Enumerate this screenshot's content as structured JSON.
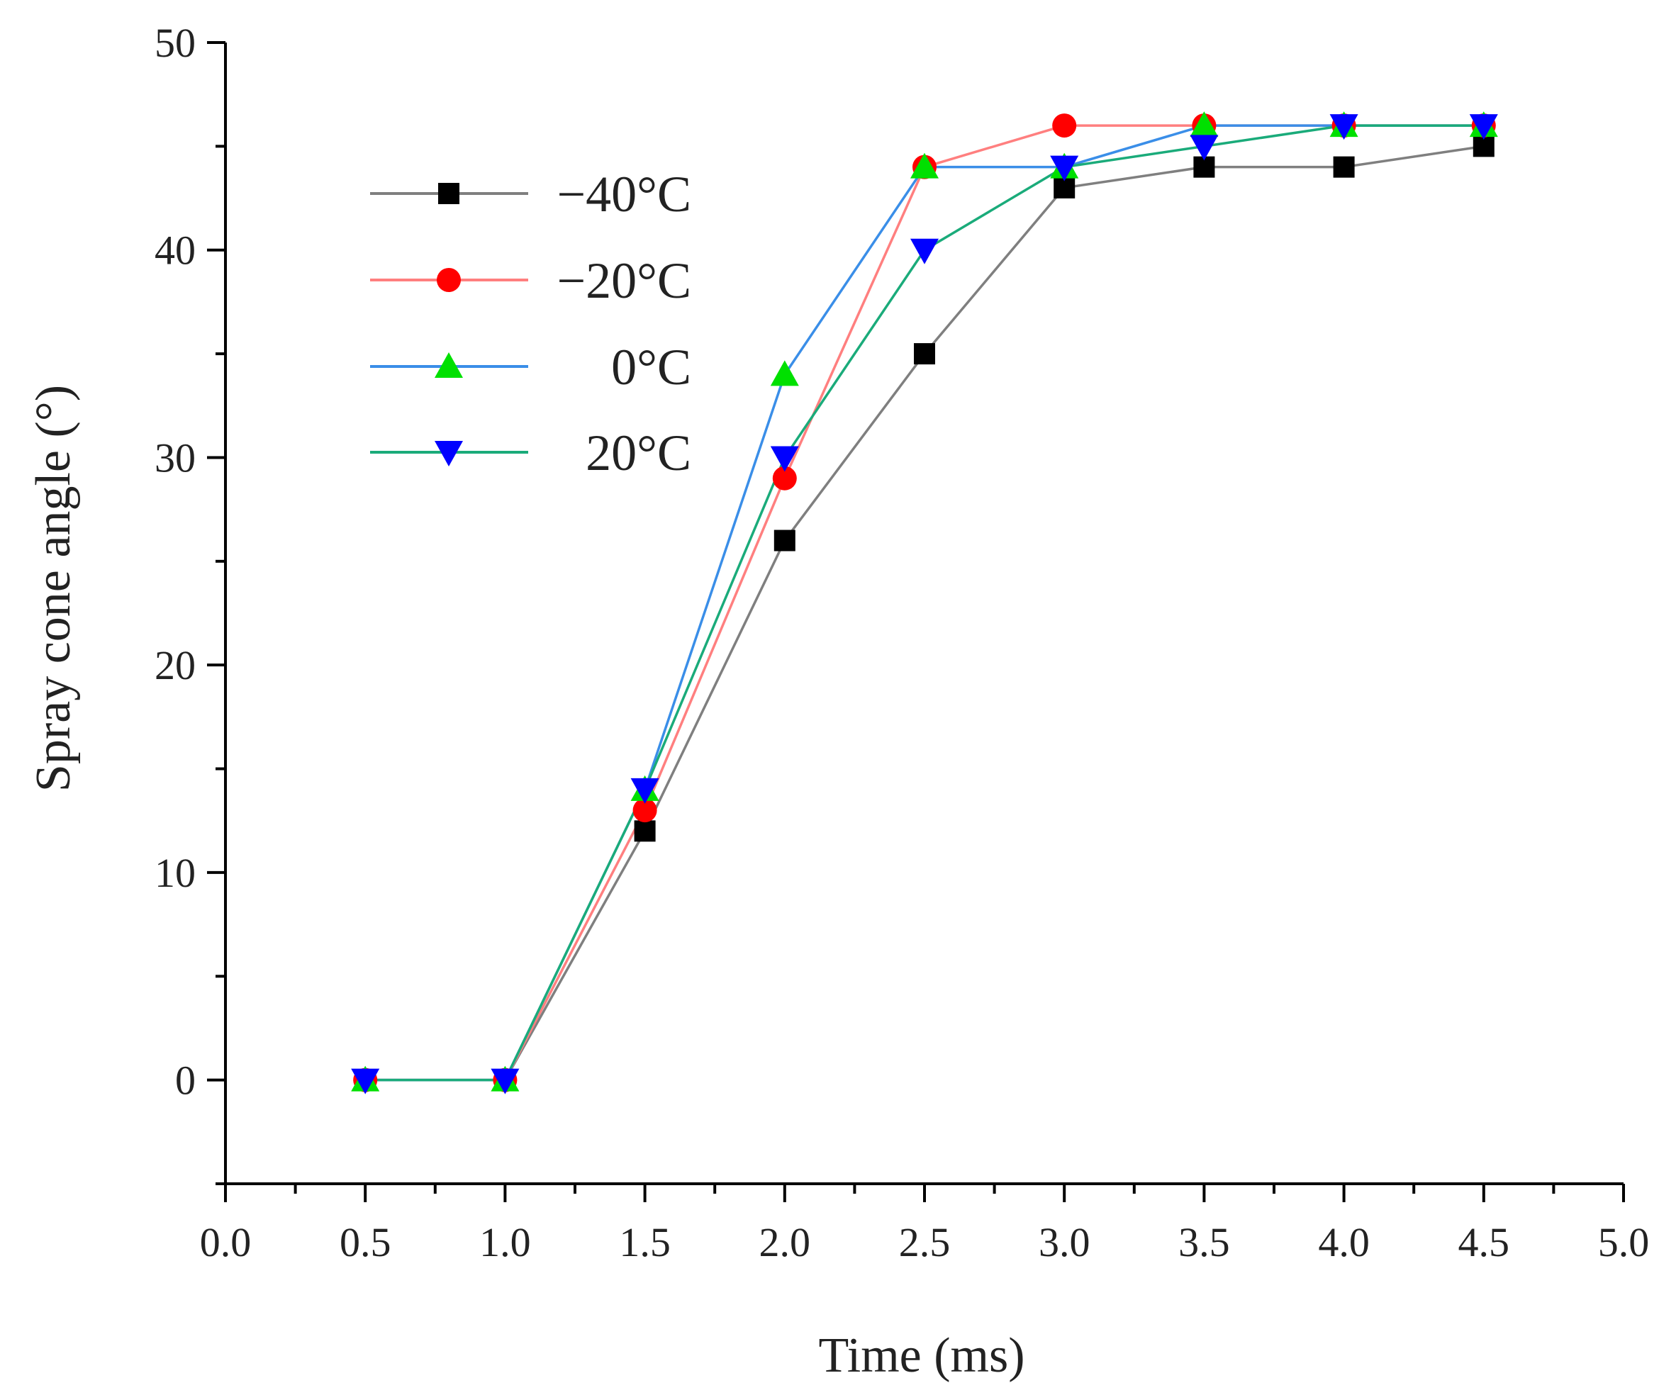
{
  "chart_data": {
    "type": "line",
    "title": "",
    "xlabel": "Time (ms)",
    "ylabel": "Spray cone angle (°)",
    "xlim": [
      0.0,
      5.0
    ],
    "ylim": [
      -5,
      50
    ],
    "xticks": [
      0.0,
      0.5,
      1.0,
      1.5,
      2.0,
      2.5,
      3.0,
      3.5,
      4.0,
      4.5,
      5.0
    ],
    "xtick_labels": [
      "0.0",
      "0.5",
      "1.0",
      "1.5",
      "2.0",
      "2.5",
      "3.0",
      "3.5",
      "4.0",
      "4.5",
      "5.0"
    ],
    "yticks": [
      0,
      10,
      20,
      30,
      40,
      50
    ],
    "ytick_labels": [
      "0",
      "10",
      "20",
      "30",
      "40",
      "50"
    ],
    "grid": false,
    "legend_position": "top-left",
    "x": [
      0.5,
      1.0,
      1.5,
      2.0,
      2.5,
      3.0,
      3.5,
      4.0,
      4.5
    ],
    "series": [
      {
        "name": "−40°C",
        "marker": "square",
        "marker_color": "#000000",
        "line_color": "#7f7f7f",
        "values": [
          0,
          0,
          12,
          26,
          35,
          43,
          44,
          44,
          45
        ]
      },
      {
        "name": "−20°C",
        "marker": "circle",
        "marker_color": "#ff0000",
        "line_color": "#ff7f7f",
        "values": [
          0,
          0,
          13,
          29,
          44,
          46,
          46,
          46,
          46
        ]
      },
      {
        "name": "0°C",
        "marker": "triangle-up",
        "marker_color": "#00e000",
        "line_color": "#3a8ee8",
        "values": [
          0,
          0,
          14,
          34,
          44,
          44,
          46,
          46,
          46
        ]
      },
      {
        "name": "20°C",
        "marker": "triangle-down",
        "marker_color": "#0000ff",
        "line_color": "#1aab7a",
        "values": [
          0,
          0,
          14,
          30,
          40,
          44,
          45,
          46,
          46
        ]
      }
    ]
  }
}
